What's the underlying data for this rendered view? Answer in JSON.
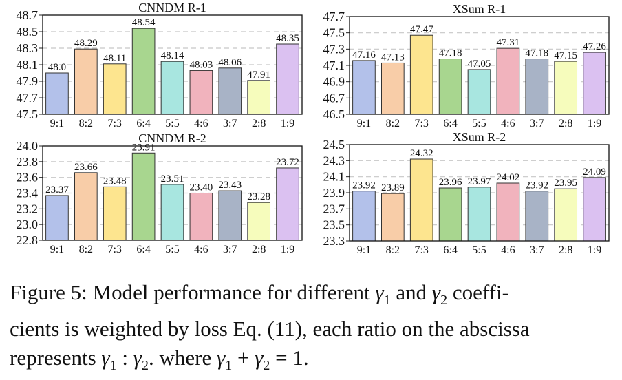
{
  "chart_data": [
    {
      "type": "bar",
      "title": "CNNDM R-1",
      "categories": [
        "9:1",
        "8:2",
        "7:3",
        "6:4",
        "5:5",
        "4:6",
        "3:7",
        "2:8",
        "1:9"
      ],
      "values": [
        48.0,
        48.29,
        48.11,
        48.54,
        48.14,
        48.03,
        48.06,
        47.91,
        48.35
      ],
      "value_labels": [
        "48.0",
        "48.29",
        "48.11",
        "48.54",
        "48.14",
        "48.03",
        "48.06",
        "47.91",
        "48.35"
      ],
      "ylim": [
        47.5,
        48.7
      ],
      "yticks": [
        "47.5",
        "47.7",
        "47.9",
        "48.1",
        "48.3",
        "48.5",
        "48.7"
      ],
      "xlabel": "",
      "ylabel": "",
      "grid": "horizontal dashed"
    },
    {
      "type": "bar",
      "title": "XSum R-1",
      "categories": [
        "9:1",
        "8:2",
        "7:3",
        "6:4",
        "5:5",
        "4:6",
        "3:7",
        "2:8",
        "1:9"
      ],
      "values": [
        47.16,
        47.13,
        47.47,
        47.18,
        47.05,
        47.31,
        47.18,
        47.15,
        47.26
      ],
      "value_labels": [
        "47.16",
        "47.13",
        "47.47",
        "47.18",
        "47.05",
        "47.31",
        "47.18",
        "47.15",
        "47.26"
      ],
      "ylim": [
        46.5,
        47.7
      ],
      "yticks": [
        "46.5",
        "46.7",
        "46.9",
        "47.1",
        "47.3",
        "47.5",
        "47.7"
      ],
      "xlabel": "",
      "ylabel": "",
      "grid": "horizontal dashed"
    },
    {
      "type": "bar",
      "title": "CNNDM R-2",
      "categories": [
        "9:1",
        "8:2",
        "7:3",
        "6:4",
        "5:5",
        "4:6",
        "3:7",
        "2:8",
        "1:9"
      ],
      "values": [
        23.37,
        23.66,
        23.48,
        23.91,
        23.51,
        23.4,
        23.43,
        23.28,
        23.72
      ],
      "value_labels": [
        "23.37",
        "23.66",
        "23.48",
        "23.91",
        "23.51",
        "23.40",
        "23.43",
        "23.28",
        "23.72"
      ],
      "ylim": [
        22.8,
        24.0
      ],
      "yticks": [
        "22.8",
        "23.0",
        "23.2",
        "23.4",
        "23.6",
        "23.8",
        "24.0"
      ],
      "xlabel": "",
      "ylabel": "",
      "grid": "horizontal dashed"
    },
    {
      "type": "bar",
      "title": "XSum R-2",
      "categories": [
        "9:1",
        "8:2",
        "7:3",
        "6:4",
        "5:5",
        "4:6",
        "3:7",
        "2:8",
        "1:9"
      ],
      "values": [
        23.92,
        23.89,
        24.32,
        23.96,
        23.97,
        24.02,
        23.92,
        23.95,
        24.09
      ],
      "value_labels": [
        "23.92",
        "23.89",
        "24.32",
        "23.96",
        "23.97",
        "24.02",
        "23.92",
        "23.95",
        "24.09"
      ],
      "ylim": [
        23.3,
        24.5
      ],
      "yticks": [
        "23.3",
        "23.5",
        "23.7",
        "23.9",
        "24.1",
        "24.3",
        "24.5"
      ],
      "xlabel": "",
      "ylabel": "",
      "grid": "horizontal dashed"
    }
  ],
  "colors": [
    "#b3c1ea",
    "#f8cda8",
    "#fde58f",
    "#a8d68f",
    "#a8e6e0",
    "#f1b3bd",
    "#a8b3c6",
    "#f6fcbc",
    "#dbc1f1"
  ],
  "caption": {
    "fig_label": "Figure 5:",
    "text_1": " Model performance for different ",
    "gamma": "γ",
    "sub_1": "1",
    "and": " and ",
    "sub_2": "2",
    "text_2": " coeffi-",
    "line2": "cients is weighted by loss Eq. (11), each ratio on the abscissa",
    "line3_a": "represents ",
    "colon": " : ",
    "line3_b": ". where ",
    "plus": " + ",
    "equals": " = 1."
  }
}
